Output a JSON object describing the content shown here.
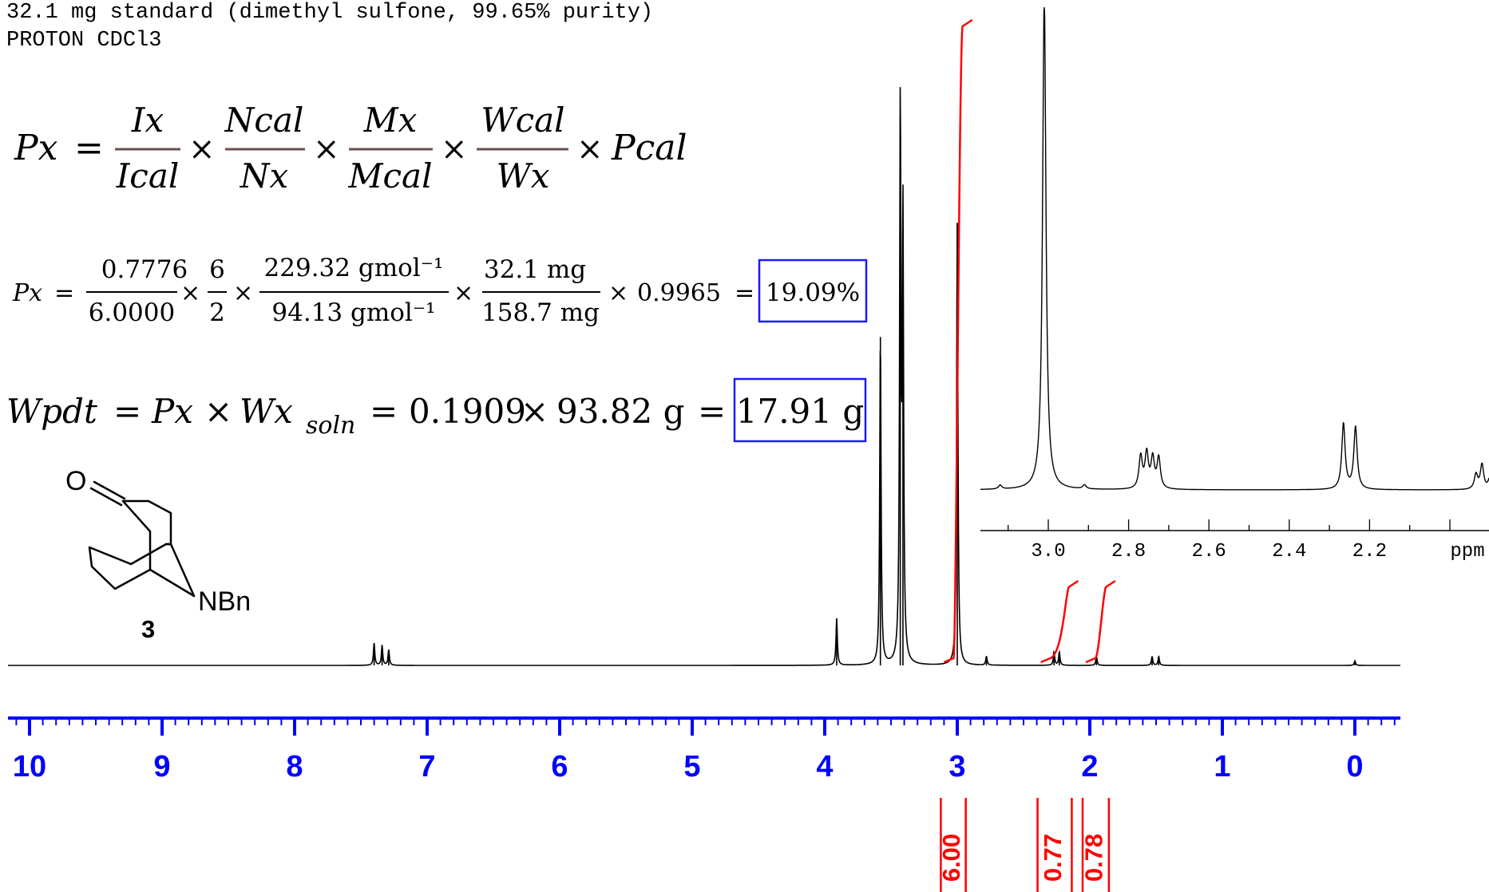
{
  "header": {
    "line1": "32.1 mg standard (dimethyl sulfone, 99.65% purity)",
    "line2": "PROTON CDCl3"
  },
  "formula_general": {
    "lhs": "Px",
    "terms": [
      {
        "num": "Ix",
        "den": "Ical"
      },
      {
        "num": "Ncal",
        "den": "Nx"
      },
      {
        "num": "Mx",
        "den": "Mcal"
      },
      {
        "num": "Wcal",
        "den": "Wx"
      }
    ],
    "tail": "Pcal"
  },
  "formula_values": {
    "lhs": "Px",
    "terms": [
      {
        "num": "0.7776",
        "den": "6.0000"
      },
      {
        "num": "6",
        "den": "2"
      },
      {
        "num": "229.32 gmol⁻¹",
        "den": "94.13 gmol⁻¹"
      },
      {
        "num": "32.1 mg",
        "den": "158.7 mg"
      }
    ],
    "tail": "0.9965",
    "result": "19.09%"
  },
  "formula_weight": {
    "lhs": "Wpdt",
    "expr_a": "Px",
    "expr_b": "Wx",
    "expr_sub": "soln",
    "expr_c": "0.1909",
    "expr_d": "93.82 g",
    "result": "17.91 g"
  },
  "molecule": {
    "oxygen": "O",
    "nitrogen": "NBn",
    "number": "3"
  },
  "colors": {
    "spectrum": "#000000",
    "integral": "#ff0000",
    "axis": "#0000ff",
    "result_box": "#1a1aff",
    "fraction_bar": "#6b4f4f"
  },
  "chart_data": [
    {
      "type": "line",
      "title": "",
      "xlabel": "",
      "ylabel": "",
      "x_axis_reversed": true,
      "xlim": [
        10.2,
        -0.35
      ],
      "x_ticks": [
        10,
        9,
        8,
        7,
        6,
        5,
        4,
        3,
        2,
        1,
        0
      ],
      "x_tick_labels": [
        "10",
        "9",
        "8",
        "7",
        "6",
        "5",
        "4",
        "3",
        "2",
        "1",
        "0"
      ],
      "grid": false,
      "peaks_ppm": [
        {
          "ppm": 7.4,
          "h": 0.01
        },
        {
          "ppm": 7.34,
          "h": 0.009
        },
        {
          "ppm": 7.29,
          "h": 0.007
        },
        {
          "ppm": 3.91,
          "h": 0.021
        },
        {
          "ppm": 3.58,
          "h": 0.147
        },
        {
          "ppm": 3.43,
          "h": 0.247
        },
        {
          "ppm": 3.41,
          "h": 0.196
        },
        {
          "ppm": 3.0,
          "h": 0.198
        },
        {
          "ppm": 2.78,
          "h": 0.004
        },
        {
          "ppm": 2.27,
          "h": 0.006
        },
        {
          "ppm": 2.23,
          "h": 0.006
        },
        {
          "ppm": 1.95,
          "h": 0.004
        },
        {
          "ppm": 1.53,
          "h": 0.004
        },
        {
          "ppm": 1.48,
          "h": 0.004
        },
        {
          "ppm": 0.0,
          "h": 0.002
        }
      ],
      "integrals": [
        {
          "label": "6.00",
          "from": 3.1,
          "to": 2.96
        },
        {
          "label": "0.77",
          "from": 2.37,
          "to": 2.16
        },
        {
          "label": "0.78",
          "from": 2.03,
          "to": 1.88
        }
      ]
    },
    {
      "type": "line",
      "title": "",
      "xlabel": "ppm",
      "ylabel": "",
      "x_axis_reversed": true,
      "xlim": [
        3.2,
        1.65
      ],
      "x_ticks": [
        3.0,
        2.8,
        2.6,
        2.4,
        2.2
      ],
      "x_tick_labels": [
        "3.0",
        "2.8",
        "2.6",
        "2.4",
        "2.2"
      ],
      "grid": false,
      "peaks_ppm": [
        {
          "ppm": 3.01,
          "h": 1.0
        },
        {
          "ppm": 3.12,
          "h": 0.008
        },
        {
          "ppm": 2.91,
          "h": 0.008
        },
        {
          "ppm": 2.77,
          "h": 0.065
        },
        {
          "ppm": 2.755,
          "h": 0.07
        },
        {
          "ppm": 2.74,
          "h": 0.06
        },
        {
          "ppm": 2.725,
          "h": 0.062
        },
        {
          "ppm": 2.265,
          "h": 0.133
        },
        {
          "ppm": 2.235,
          "h": 0.126
        },
        {
          "ppm": 1.935,
          "h": 0.03
        },
        {
          "ppm": 1.92,
          "h": 0.05
        },
        {
          "ppm": 1.9,
          "h": 0.025
        }
      ]
    }
  ]
}
